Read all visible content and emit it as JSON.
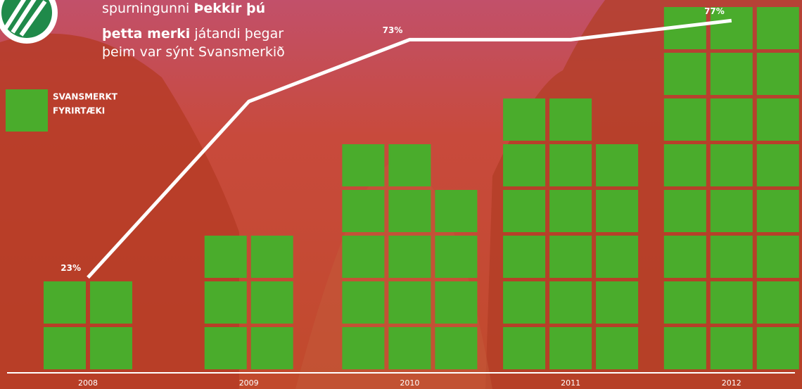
{
  "intro": {
    "lines": [
      [
        "spurningunni ",
        "Þekkir þú"
      ],
      [
        "þetta merki",
        " játandi þegar"
      ],
      [
        "þeim var sýnt Svansmerkið"
      ]
    ]
  },
  "chart_data": {
    "type": "bar-line",
    "legend": {
      "lines": [
        "SVANSMERKT",
        "FYRIRTÆKI"
      ],
      "color": "#4aac2c"
    },
    "categories": [
      "2008",
      "2009",
      "2010",
      "2011",
      "2012"
    ],
    "series": [
      {
        "type": "squares",
        "color": "#4aac2c",
        "values": [
          4,
          6,
          14,
          17,
          24
        ]
      },
      {
        "type": "line",
        "axis": "y2",
        "color": "#ffffff",
        "values": [
          23,
          60,
          73,
          73,
          77
        ],
        "value_labels": [
          "23%",
          null,
          "73%",
          null,
          "77%"
        ]
      }
    ],
    "y2lim": [
      0,
      80
    ]
  }
}
